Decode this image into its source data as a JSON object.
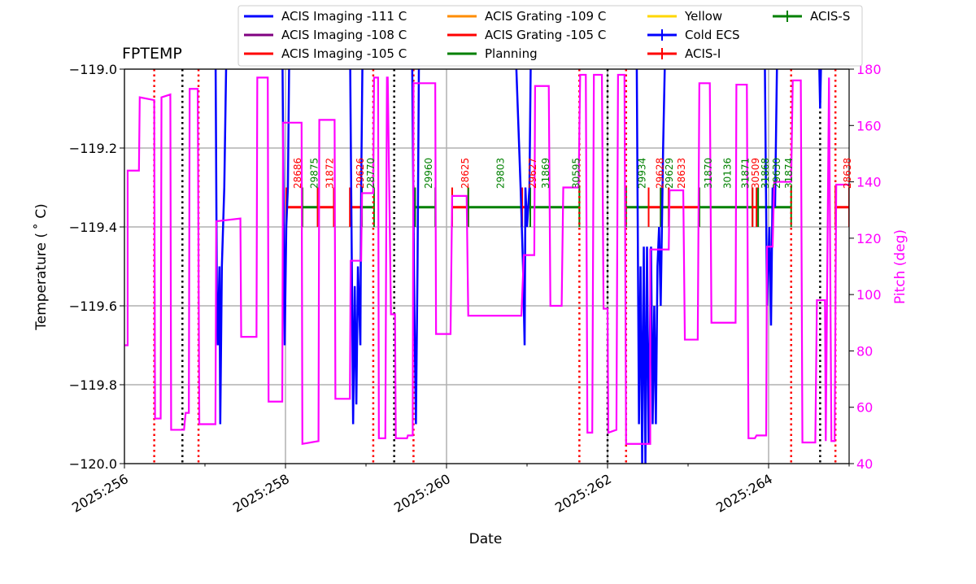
{
  "chart_data": {
    "type": "line",
    "title": "FPTEMP",
    "xlabel": "Date",
    "ylabel": "Temperature ($^\\circ$C)",
    "ylabel_display": "Temperature ( ˚ C)",
    "y2label": "Pitch (deg)",
    "xlim": [
      256,
      265
    ],
    "ylim": [
      -120.0,
      -119.0
    ],
    "y2lim": [
      40,
      180
    ],
    "grid": true,
    "legend_placement": "top-center",
    "x_ticks": [
      256,
      258,
      260,
      262,
      264
    ],
    "x_tick_labels": [
      "2025:256",
      "2025:258",
      "2025:260",
      "2025:262",
      "2025:264"
    ],
    "y_ticks": [
      "−120.0",
      "−119.8",
      "−119.6",
      "−119.4",
      "−119.2",
      "−119.0"
    ],
    "y_tick_values": [
      -120.0,
      -119.8,
      -119.6,
      -119.4,
      -119.2,
      -119.0
    ],
    "y2_ticks": [
      "40",
      "60",
      "80",
      "100",
      "120",
      "140",
      "160",
      "180"
    ],
    "y2_tick_values": [
      40,
      60,
      80,
      100,
      120,
      140,
      160,
      180
    ],
    "colors": {
      "temp": "#0000ff",
      "pitch": "#ff00ff",
      "acis_i": "#ff0000",
      "acis_s": "#008000",
      "red_line": "#ff0000",
      "black_line": "#000000",
      "grid": "#b0b0b0",
      "obsid_i": "#ff0000",
      "obsid_s": "#008000"
    },
    "legend": [
      {
        "label": "ACIS Imaging -111 C",
        "color": "#0000ff",
        "style": "line"
      },
      {
        "label": "ACIS Imaging -108 C",
        "color": "#800080",
        "style": "line"
      },
      {
        "label": "ACIS Imaging -105 C",
        "color": "#ff0000",
        "style": "line"
      },
      {
        "label": "ACIS Grating -109 C",
        "color": "#ff8c00",
        "style": "line"
      },
      {
        "label": "ACIS Grating -105 C",
        "color": "#ff0000",
        "style": "line"
      },
      {
        "label": "Planning",
        "color": "#008000",
        "style": "line"
      },
      {
        "label": "Yellow",
        "color": "#ffd700",
        "style": "line"
      },
      {
        "label": "Cold ECS",
        "color": "#0000ff",
        "style": "errorbar"
      },
      {
        "label": "ACIS-I",
        "color": "#ff0000",
        "style": "errorbar"
      },
      {
        "label": "ACIS-S",
        "color": "#008000",
        "style": "errorbar"
      }
    ],
    "pitch_series": [
      [
        256.0,
        82
      ],
      [
        256.04,
        82
      ],
      [
        256.04,
        144
      ],
      [
        256.18,
        144
      ],
      [
        256.19,
        170
      ],
      [
        256.37,
        169
      ],
      [
        256.38,
        56
      ],
      [
        256.45,
        56
      ],
      [
        256.46,
        170
      ],
      [
        256.57,
        171
      ],
      [
        256.58,
        52
      ],
      [
        256.74,
        52
      ],
      [
        256.76,
        58
      ],
      [
        256.8,
        58
      ],
      [
        256.81,
        173
      ],
      [
        256.91,
        173
      ],
      [
        256.93,
        54
      ],
      [
        257.13,
        54
      ],
      [
        257.14,
        126
      ],
      [
        257.44,
        127
      ],
      [
        257.45,
        85
      ],
      [
        257.64,
        85
      ],
      [
        257.65,
        177
      ],
      [
        257.78,
        177
      ],
      [
        257.79,
        62
      ],
      [
        257.96,
        62
      ],
      [
        257.97,
        161
      ],
      [
        258.2,
        161
      ],
      [
        258.21,
        47
      ],
      [
        258.41,
        48
      ],
      [
        258.42,
        162
      ],
      [
        258.61,
        162
      ],
      [
        258.62,
        63
      ],
      [
        258.8,
        63
      ],
      [
        258.81,
        112
      ],
      [
        258.94,
        112
      ],
      [
        258.95,
        136
      ],
      [
        259.09,
        136
      ],
      [
        259.1,
        177
      ],
      [
        259.15,
        177
      ],
      [
        259.16,
        49
      ],
      [
        259.24,
        49
      ],
      [
        259.26,
        177
      ],
      [
        259.27,
        177
      ],
      [
        259.31,
        93
      ],
      [
        259.36,
        93
      ],
      [
        259.37,
        49
      ],
      [
        259.51,
        49
      ],
      [
        259.52,
        50
      ],
      [
        259.58,
        50
      ],
      [
        259.59,
        175
      ],
      [
        259.86,
        175
      ],
      [
        259.87,
        86
      ],
      [
        260.05,
        86
      ],
      [
        260.07,
        135
      ],
      [
        260.25,
        135
      ],
      [
        260.27,
        92.5
      ],
      [
        260.93,
        92.5
      ],
      [
        260.96,
        114
      ],
      [
        261.09,
        114
      ],
      [
        261.1,
        174
      ],
      [
        261.27,
        174
      ],
      [
        261.29,
        96
      ],
      [
        261.43,
        96
      ],
      [
        261.45,
        138
      ],
      [
        261.64,
        138
      ],
      [
        261.66,
        178
      ],
      [
        261.73,
        178
      ],
      [
        261.75,
        51
      ],
      [
        261.81,
        51
      ],
      [
        261.83,
        178
      ],
      [
        261.93,
        178
      ],
      [
        261.95,
        95
      ],
      [
        262.0,
        95
      ],
      [
        262.01,
        51
      ],
      [
        262.11,
        52
      ],
      [
        262.13,
        178
      ],
      [
        262.21,
        178
      ],
      [
        262.23,
        47
      ],
      [
        262.53,
        47
      ],
      [
        262.53,
        116
      ],
      [
        262.76,
        116
      ],
      [
        262.77,
        137
      ],
      [
        262.94,
        137
      ],
      [
        262.96,
        84
      ],
      [
        263.12,
        84
      ],
      [
        263.14,
        175
      ],
      [
        263.27,
        175
      ],
      [
        263.29,
        90
      ],
      [
        263.59,
        90
      ],
      [
        263.6,
        174.5
      ],
      [
        263.73,
        174.5
      ],
      [
        263.75,
        49
      ],
      [
        263.83,
        49
      ],
      [
        263.85,
        50
      ],
      [
        263.97,
        50
      ],
      [
        263.98,
        117
      ],
      [
        264.05,
        117
      ],
      [
        264.07,
        140
      ],
      [
        264.28,
        140
      ],
      [
        264.3,
        176
      ],
      [
        264.4,
        176
      ],
      [
        264.42,
        47.5
      ],
      [
        264.58,
        47.5
      ],
      [
        264.6,
        98
      ],
      [
        264.7,
        98
      ],
      [
        264.71,
        48
      ],
      [
        264.75,
        177
      ],
      [
        264.78,
        48
      ],
      [
        264.82,
        48
      ],
      [
        264.84,
        139
      ],
      [
        265.0,
        139
      ]
    ],
    "temp_dips": [
      [
        [
          257.13,
          -118.9
        ],
        [
          257.15,
          -119.65
        ],
        [
          257.16,
          -119.7
        ],
        [
          257.18,
          -119.5
        ],
        [
          257.19,
          -119.9
        ],
        [
          257.21,
          -119.5
        ],
        [
          257.24,
          -119.3
        ],
        [
          257.27,
          -118.9
        ]
      ],
      [
        [
          257.96,
          -118.9
        ],
        [
          257.99,
          -119.7
        ],
        [
          258.01,
          -119.4
        ],
        [
          258.03,
          -119.3
        ],
        [
          258.05,
          -118.9
        ]
      ],
      [
        [
          258.8,
          -118.9
        ],
        [
          258.84,
          -119.9
        ],
        [
          258.86,
          -119.55
        ],
        [
          258.88,
          -119.85
        ],
        [
          258.9,
          -119.5
        ],
        [
          258.93,
          -119.7
        ],
        [
          258.94,
          -119.3
        ],
        [
          258.96,
          -118.9
        ]
      ],
      [
        [
          259.57,
          -118.9
        ],
        [
          259.6,
          -119.6
        ],
        [
          259.62,
          -119.9
        ],
        [
          259.64,
          -119.5
        ],
        [
          259.66,
          -118.9
        ]
      ],
      [
        [
          260.85,
          -118.9
        ],
        [
          260.92,
          -119.3
        ],
        [
          260.95,
          -119.5
        ],
        [
          260.97,
          -119.7
        ],
        [
          260.98,
          -119.3
        ],
        [
          261.0,
          -119.4
        ],
        [
          261.03,
          -119.3
        ],
        [
          261.05,
          -118.9
        ]
      ],
      [
        [
          262.36,
          -118.9
        ],
        [
          262.39,
          -119.9
        ],
        [
          262.41,
          -119.5
        ],
        [
          262.43,
          -120.0
        ],
        [
          262.45,
          -119.45
        ],
        [
          262.47,
          -120.0
        ],
        [
          262.49,
          -119.45
        ],
        [
          262.51,
          -119.95
        ],
        [
          262.54,
          -119.45
        ],
        [
          262.56,
          -119.9
        ],
        [
          262.58,
          -119.6
        ],
        [
          262.6,
          -119.9
        ],
        [
          262.62,
          -119.5
        ],
        [
          262.64,
          -119.4
        ],
        [
          262.66,
          -119.6
        ],
        [
          262.69,
          -119.2
        ],
        [
          262.72,
          -118.9
        ]
      ],
      [
        [
          263.95,
          -118.9
        ],
        [
          263.98,
          -119.6
        ],
        [
          264.01,
          -119.4
        ],
        [
          264.03,
          -119.65
        ],
        [
          264.05,
          -119.3
        ],
        [
          264.08,
          -119.35
        ],
        [
          264.11,
          -118.9
        ]
      ],
      [
        [
          264.62,
          -118.9
        ],
        [
          264.64,
          -119.1
        ],
        [
          264.66,
          -118.9
        ]
      ]
    ],
    "red_dotted_days": [
      256.37,
      256.92,
      259.09,
      259.59,
      261.65,
      262.23,
      264.28,
      264.83
    ],
    "black_dotted_days": [
      256.72,
      259.35,
      262.0,
      264.64
    ],
    "instrument_level": -119.35,
    "observations": [
      {
        "start": 258.01,
        "end": 258.21,
        "inst": "ACIS-I"
      },
      {
        "start": 258.21,
        "end": 258.4,
        "inst": "ACIS-S"
      },
      {
        "start": 258.4,
        "end": 258.6,
        "inst": "ACIS-I"
      },
      {
        "start": 258.8,
        "end": 258.95,
        "inst": "ACIS-I"
      },
      {
        "start": 258.95,
        "end": 259.1,
        "inst": "ACIS-S"
      },
      {
        "start": 259.61,
        "end": 259.86,
        "inst": "ACIS-S"
      },
      {
        "start": 260.07,
        "end": 260.27,
        "inst": "ACIS-I"
      },
      {
        "start": 260.27,
        "end": 260.93,
        "inst": "ACIS-S"
      },
      {
        "start": 260.94,
        "end": 261.04,
        "inst": "ACIS-I"
      },
      {
        "start": 261.04,
        "end": 261.65,
        "inst": "ACIS-S"
      },
      {
        "start": 262.23,
        "end": 262.51,
        "inst": "ACIS-S"
      },
      {
        "start": 262.51,
        "end": 262.66,
        "inst": "ACIS-I"
      },
      {
        "start": 262.66,
        "end": 262.76,
        "inst": "ACIS-S"
      },
      {
        "start": 262.76,
        "end": 263.14,
        "inst": "ACIS-I"
      },
      {
        "start": 263.14,
        "end": 263.8,
        "inst": "ACIS-S"
      },
      {
        "start": 263.8,
        "end": 263.85,
        "inst": "ACIS-I"
      },
      {
        "start": 263.87,
        "end": 264.28,
        "inst": "ACIS-S"
      },
      {
        "start": 264.83,
        "end": 265.0,
        "inst": "ACIS-I"
      }
    ],
    "obsid_labels": [
      {
        "text": "28686",
        "day": 258.15,
        "inst": "ACIS-I"
      },
      {
        "text": "29875",
        "day": 258.36,
        "inst": "ACIS-S"
      },
      {
        "text": "31872",
        "day": 258.55,
        "inst": "ACIS-I"
      },
      {
        "text": "29626",
        "day": 258.93,
        "inst": "ACIS-I"
      },
      {
        "text": "28770",
        "day": 259.06,
        "inst": "ACIS-S"
      },
      {
        "text": "29960",
        "day": 259.78,
        "inst": "ACIS-S"
      },
      {
        "text": "28625",
        "day": 260.23,
        "inst": "ACIS-I"
      },
      {
        "text": "29803",
        "day": 260.67,
        "inst": "ACIS-S"
      },
      {
        "text": "29627",
        "day": 261.07,
        "inst": "ACIS-I"
      },
      {
        "text": "31869",
        "day": 261.23,
        "inst": "ACIS-S"
      },
      {
        "text": "30595",
        "day": 261.61,
        "inst": "ACIS-S"
      },
      {
        "text": "29934",
        "day": 262.43,
        "inst": "ACIS-S"
      },
      {
        "text": "29628",
        "day": 262.65,
        "inst": "ACIS-I"
      },
      {
        "text": "29629",
        "day": 262.77,
        "inst": "ACIS-S"
      },
      {
        "text": "28633",
        "day": 262.92,
        "inst": "ACIS-I"
      },
      {
        "text": "31870",
        "day": 263.25,
        "inst": "ACIS-S"
      },
      {
        "text": "30136",
        "day": 263.49,
        "inst": "ACIS-S"
      },
      {
        "text": "31871",
        "day": 263.71,
        "inst": "ACIS-S"
      },
      {
        "text": "30509",
        "day": 263.84,
        "inst": "ACIS-I"
      },
      {
        "text": "31868",
        "day": 263.96,
        "inst": "ACIS-S"
      },
      {
        "text": "29630",
        "day": 264.1,
        "inst": "ACIS-S"
      },
      {
        "text": "31874",
        "day": 264.25,
        "inst": "ACIS-S"
      },
      {
        "text": "28638",
        "day": 264.98,
        "inst": "ACIS-I"
      }
    ]
  }
}
